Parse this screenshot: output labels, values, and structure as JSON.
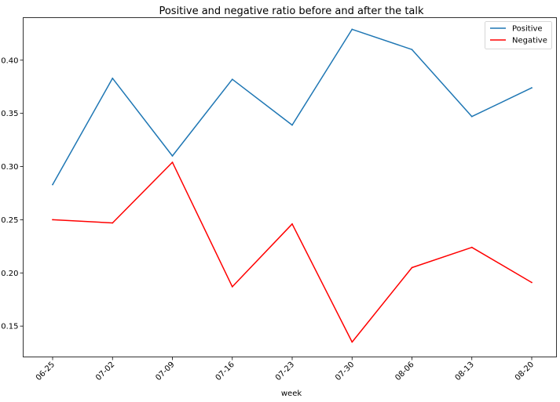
{
  "chart_data": {
    "type": "line",
    "title": "Positive and negative ratio before and after the talk",
    "xlabel": "week",
    "ylabel": "",
    "categories": [
      "06-25",
      "07-02",
      "07-09",
      "07-16",
      "07-23",
      "07-30",
      "08-06",
      "08-13",
      "08-20"
    ],
    "ylim": [
      0.121,
      0.44
    ],
    "yticks": [
      0.15,
      0.2,
      0.25,
      0.3,
      0.35,
      0.4
    ],
    "ytick_labels": [
      "0.15",
      "0.20",
      "0.25",
      "0.30",
      "0.35",
      "0.40"
    ],
    "grid": false,
    "legend_position": "top-right",
    "series": [
      {
        "name": "Positive",
        "color": "#1f77b4",
        "values": [
          0.283,
          0.383,
          0.31,
          0.382,
          0.339,
          0.429,
          0.41,
          0.347,
          0.374
        ]
      },
      {
        "name": "Negative",
        "color": "#ff0000",
        "values": [
          0.25,
          0.247,
          0.304,
          0.187,
          0.246,
          0.135,
          0.205,
          0.224,
          0.191
        ]
      }
    ]
  }
}
